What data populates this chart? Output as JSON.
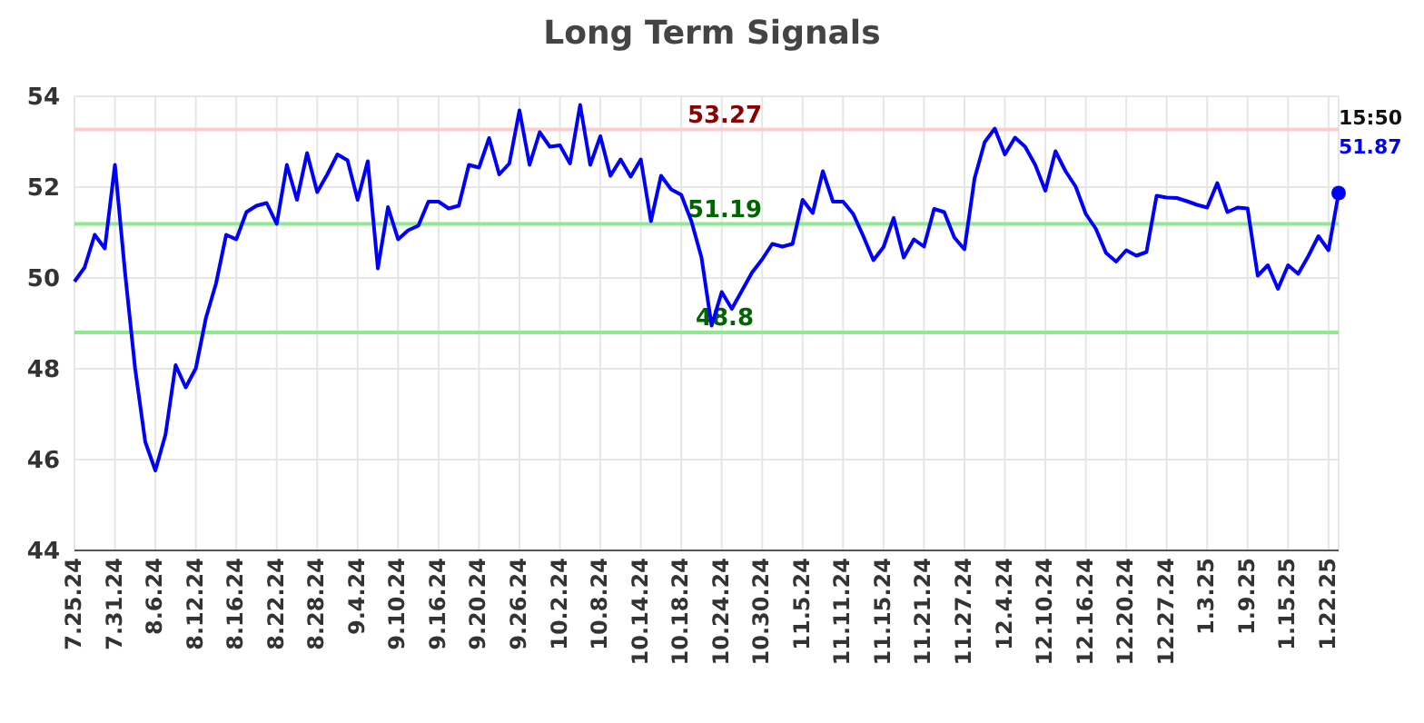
{
  "chart_data": {
    "type": "line",
    "title": "Long Term Signals",
    "categories": [
      "7.25.24",
      null,
      null,
      null,
      "7.31.24",
      null,
      null,
      null,
      "8.6.24",
      null,
      null,
      null,
      "8.12.24",
      null,
      null,
      null,
      "8.16.24",
      null,
      null,
      null,
      "8.22.24",
      null,
      null,
      null,
      "8.28.24",
      null,
      null,
      null,
      "9.4.24",
      null,
      null,
      null,
      "9.10.24",
      null,
      null,
      null,
      "9.16.24",
      null,
      null,
      null,
      "9.20.24",
      null,
      null,
      null,
      "9.26.24",
      null,
      null,
      null,
      "10.2.24",
      null,
      null,
      null,
      "10.8.24",
      null,
      null,
      null,
      "10.14.24",
      null,
      null,
      null,
      "10.18.24",
      null,
      null,
      null,
      "10.24.24",
      null,
      null,
      null,
      "10.30.24",
      null,
      null,
      null,
      "11.5.24",
      null,
      null,
      null,
      "11.11.24",
      null,
      null,
      null,
      "11.15.24",
      null,
      null,
      null,
      "11.21.24",
      null,
      null,
      null,
      "11.27.24",
      null,
      null,
      null,
      "12.4.24",
      null,
      null,
      null,
      "12.10.24",
      null,
      null,
      null,
      "12.16.24",
      null,
      null,
      null,
      "12.20.24",
      null,
      null,
      null,
      "12.27.24",
      null,
      null,
      null,
      "1.3.25",
      null,
      null,
      null,
      "1.9.25",
      null,
      null,
      null,
      "1.15.25",
      null,
      null,
      null,
      "1.22.25",
      null
    ],
    "series": [
      {
        "color": "#0000ff",
        "values": [
          49.92,
          50.23,
          50.95,
          50.65,
          52.49,
          50.12,
          48.0,
          46.39,
          45.76,
          46.55,
          48.08,
          47.59,
          48.01,
          49.12,
          49.88,
          50.95,
          50.85,
          51.45,
          51.59,
          51.65,
          51.19,
          52.49,
          51.72,
          52.75,
          51.89,
          52.28,
          52.72,
          52.59,
          51.72,
          52.57,
          50.21,
          51.56,
          50.85,
          51.05,
          51.15,
          51.68,
          51.68,
          51.53,
          51.59,
          52.49,
          52.43,
          53.08,
          52.28,
          52.52,
          53.69,
          52.49,
          53.21,
          52.89,
          52.92,
          52.52,
          53.81,
          52.49,
          53.12,
          52.25,
          52.61,
          52.23,
          52.61,
          51.25,
          52.25,
          51.95,
          51.83,
          51.25,
          50.45,
          48.95,
          49.69,
          49.32,
          49.72,
          50.12,
          50.41,
          50.75,
          50.69,
          50.75,
          51.72,
          51.43,
          52.35,
          51.68,
          51.68,
          51.41,
          50.92,
          50.39,
          50.68,
          51.32,
          50.45,
          50.85,
          50.69,
          51.52,
          51.45,
          50.89,
          50.63,
          52.19,
          52.99,
          53.29,
          52.72,
          53.09,
          52.89,
          52.49,
          51.92,
          52.79,
          52.35,
          52.01,
          51.41,
          51.08,
          50.55,
          50.36,
          50.61,
          50.49,
          50.57,
          51.81,
          51.77,
          51.76,
          51.69,
          51.61,
          51.55,
          52.09,
          51.45,
          51.55,
          51.53,
          50.05,
          50.28,
          49.76,
          50.28,
          50.09,
          50.48,
          50.92,
          50.61,
          51.87
        ],
        "value_labels": [
          null,
          null,
          null,
          null,
          null,
          null,
          null,
          null,
          null,
          null,
          null,
          null,
          null,
          null,
          null,
          null,
          null,
          null,
          null,
          null,
          null,
          null,
          null,
          null,
          null,
          null,
          null,
          null,
          null,
          null,
          null,
          null,
          null,
          null,
          null,
          null,
          null,
          null,
          null,
          null,
          null,
          null,
          null,
          null,
          null,
          null,
          null,
          null,
          null,
          null,
          null,
          null,
          null,
          null,
          null,
          null,
          null,
          null,
          null,
          null,
          null,
          null,
          null,
          null,
          null,
          null,
          null,
          null,
          null,
          null,
          null,
          null,
          null,
          null,
          null,
          null,
          null,
          null,
          null,
          null,
          null,
          null,
          null,
          null,
          null,
          null,
          null,
          null,
          null,
          null,
          null,
          null,
          null,
          null,
          null,
          null,
          null,
          null,
          null,
          null,
          null,
          null,
          null,
          null,
          null,
          null,
          null,
          null,
          null,
          null,
          null,
          null,
          null,
          null,
          null,
          null,
          null,
          null,
          null,
          null,
          null,
          null,
          null,
          null,
          null,
          "51.87"
        ]
      }
    ],
    "ylim": [
      44,
      54
    ],
    "yticks": [
      44,
      46,
      48,
      50,
      52,
      54
    ],
    "grid": true,
    "legend": false,
    "ref_lines": [
      {
        "axis": "y",
        "value": 53.27,
        "label": "53.27",
        "color": "#ffcccc"
      },
      {
        "axis": "y",
        "value": 51.19,
        "label": "51.19",
        "color": "#90e890"
      },
      {
        "axis": "y",
        "value": 48.8,
        "label": "48.8",
        "color": "#90e890"
      }
    ],
    "annotations": [
      "15:50"
    ]
  }
}
